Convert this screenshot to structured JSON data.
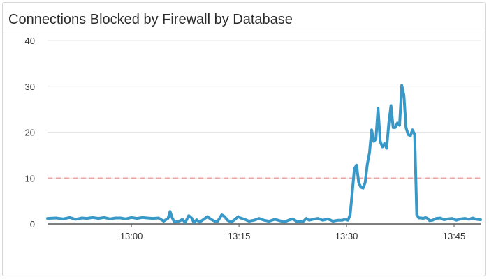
{
  "widget": {
    "title": "Connections Blocked by Firewall by Database"
  },
  "chart_data": {
    "type": "line",
    "title": "Connections Blocked by Firewall by Database",
    "xlabel": "",
    "ylabel": "",
    "ylim": [
      0,
      40
    ],
    "yticks": [
      0,
      10,
      20,
      30,
      40
    ],
    "y_tick_labels": [
      "0",
      "10",
      "20",
      "30",
      "40"
    ],
    "x_tick_labels": [
      "13:00",
      "13:15",
      "13:30",
      "13:45"
    ],
    "x_tick_minutes": [
      0,
      15,
      30,
      45
    ],
    "x_range_minutes": [
      -11.7,
      48.7
    ],
    "grid": true,
    "threshold": {
      "value": 10,
      "color": "#e8a6a6",
      "style": "dashed"
    },
    "series": [
      {
        "color": "#3898c8",
        "x": [
          -11.7,
          -10.5,
          -9.5,
          -8.6,
          -7.8,
          -6.9,
          -6.2,
          -5.4,
          -4.6,
          -3.8,
          -3.0,
          -2.2,
          -1.5,
          -0.8,
          0.0,
          0.8,
          1.5,
          2.2,
          3.0,
          3.8,
          4.5,
          5.1,
          5.4,
          5.7,
          6.0,
          6.6,
          7.1,
          7.5,
          8.0,
          8.4,
          8.7,
          9.1,
          9.5,
          10.0,
          10.6,
          11.1,
          11.6,
          12.0,
          12.6,
          13.0,
          13.4,
          13.9,
          14.3,
          14.6,
          14.9,
          15.2,
          15.8,
          16.4,
          17.1,
          17.8,
          18.5,
          19.2,
          20.0,
          20.7,
          21.3,
          21.9,
          22.5,
          23.1,
          23.6,
          24.0,
          24.4,
          24.8,
          25.3,
          26.0,
          26.7,
          27.4,
          28.1,
          28.8,
          29.4,
          29.8,
          30.2,
          30.5,
          30.8,
          31.1,
          31.4,
          31.7,
          32.0,
          32.3,
          32.6,
          32.9,
          33.2,
          33.5,
          33.8,
          34.1,
          34.4,
          34.7,
          35.0,
          35.3,
          35.6,
          35.9,
          36.2,
          36.5,
          36.8,
          37.1,
          37.4,
          37.7,
          38.0,
          38.3,
          38.6,
          38.9,
          39.2,
          39.5,
          39.8,
          40.1,
          40.4,
          40.7,
          41.0,
          41.3,
          41.6,
          42.0,
          42.5,
          43.1,
          43.6,
          44.1,
          44.7,
          45.3,
          45.9,
          46.5,
          47.1,
          47.6,
          48.1,
          48.7
        ],
        "values": [
          1.2,
          1.3,
          1.1,
          1.4,
          1.0,
          1.3,
          1.2,
          1.4,
          1.2,
          1.4,
          1.1,
          1.3,
          1.3,
          1.1,
          1.4,
          1.2,
          1.4,
          1.3,
          1.2,
          1.3,
          0.6,
          1.2,
          2.7,
          1.3,
          0.4,
          0.5,
          1.0,
          0.3,
          1.8,
          1.3,
          0.3,
          0.9,
          0.4,
          0.9,
          1.6,
          1.0,
          0.6,
          0.5,
          2.0,
          1.6,
          0.8,
          0.4,
          0.8,
          1.2,
          1.6,
          1.3,
          1.0,
          0.6,
          0.8,
          1.2,
          0.8,
          0.6,
          1.0,
          0.7,
          0.4,
          0.8,
          1.1,
          0.5,
          0.6,
          0.6,
          1.2,
          0.8,
          1.0,
          1.2,
          0.8,
          1.1,
          0.6,
          0.8,
          0.8,
          1.0,
          0.8,
          2.0,
          7.0,
          12.0,
          12.8,
          9.0,
          8.0,
          7.8,
          9.0,
          13.0,
          15.5,
          20.5,
          18.0,
          18.5,
          25.2,
          18.0,
          16.8,
          17.5,
          16.5,
          22.0,
          25.8,
          21.0,
          21.0,
          22.0,
          21.5,
          30.2,
          28.0,
          21.0,
          19.5,
          19.2,
          20.5,
          19.5,
          2.0,
          1.3,
          1.3,
          1.2,
          1.4,
          1.2,
          0.7,
          0.8,
          1.2,
          1.3,
          0.9,
          1.1,
          1.2,
          0.8,
          1.1,
          1.2,
          1.0,
          1.3,
          1.0,
          0.9
        ]
      }
    ]
  }
}
